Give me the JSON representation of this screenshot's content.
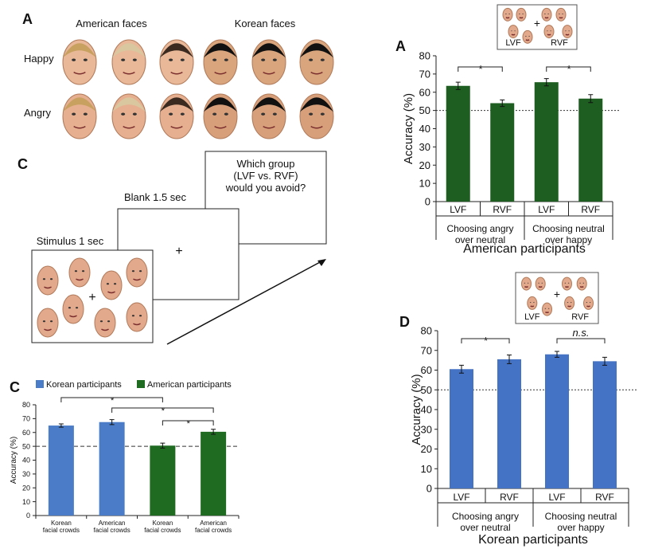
{
  "faces_panel": {
    "label": "A",
    "columns": [
      "American faces",
      "Korean faces"
    ],
    "rows": [
      "Happy",
      "Angry"
    ]
  },
  "procedure_panel": {
    "label": "C",
    "steps": [
      "Stimulus 1 sec",
      "Blank 1.5 sec",
      "Which group\n(LVF vs. RVF)\nwould you avoid?"
    ],
    "fixation": "+"
  },
  "chart_data": [
    {
      "type": "bar",
      "panel_label": "A",
      "inset_labels": [
        "LVF",
        "RVF"
      ],
      "categories": [
        "LVF",
        "RVF",
        "LVF",
        "RVF"
      ],
      "groups": [
        "Choosing angry\nover neutral",
        "Choosing neutral\nover happy"
      ],
      "y_label": "Accuracy (%)",
      "x_label": "American participants",
      "series": [
        {
          "color": "#1e5e20",
          "values": [
            63.5,
            54,
            65.5,
            56.5
          ],
          "errors": [
            2,
            1.8,
            2,
            2.2
          ]
        }
      ],
      "ylim": [
        0,
        80
      ],
      "yticks": [
        0,
        10,
        20,
        30,
        40,
        50,
        60,
        70,
        80
      ],
      "reference_line": 50,
      "annotations": [
        {
          "label": "*",
          "between": [
            0,
            1
          ]
        },
        {
          "label": "*",
          "between": [
            2,
            3
          ]
        }
      ]
    },
    {
      "type": "bar",
      "panel_label": "D",
      "inset_labels": [
        "LVF",
        "RVF"
      ],
      "categories": [
        "LVF",
        "RVF",
        "LVF",
        "RVF"
      ],
      "groups": [
        "Choosing angry\nover neutral",
        "Choosing neutral\nover happy"
      ],
      "y_label": "Accuracy (%)",
      "x_label": "Korean participants",
      "series": [
        {
          "color": "#4472c4",
          "values": [
            60.5,
            65.5,
            68,
            64.5
          ],
          "errors": [
            2,
            2.2,
            1.5,
            2
          ]
        }
      ],
      "ylim": [
        0,
        80
      ],
      "yticks": [
        0,
        10,
        20,
        30,
        40,
        50,
        60,
        70,
        80
      ],
      "reference_line": 50,
      "annotations": [
        {
          "label": "*",
          "between": [
            0,
            1
          ]
        },
        {
          "label": "n.s.",
          "between": [
            2,
            3
          ]
        }
      ]
    },
    {
      "type": "bar",
      "panel_label": "C",
      "categories": [
        "Korean\nfacial crowds",
        "American\nfacial crowds",
        "Korean\nfacial crowds",
        "American\nfacial crowds"
      ],
      "y_label": "Accuracy (%)",
      "series": [
        {
          "name": "Korean participants",
          "color": "#4a7cc7",
          "values": [
            65,
            67.5,
            null,
            null
          ],
          "errors": [
            1.2,
            1.8,
            null,
            null
          ]
        },
        {
          "name": "American participants",
          "color": "#1e6b21",
          "values": [
            null,
            null,
            50.5,
            60.5
          ],
          "errors": [
            null,
            null,
            1.8,
            1.8
          ]
        }
      ],
      "ylim": [
        0,
        80
      ],
      "yticks": [
        0,
        10,
        20,
        30,
        40,
        50,
        60,
        70,
        80
      ],
      "reference_line": 50,
      "legend": "top",
      "annotations": [
        {
          "label": "*",
          "between": [
            0,
            2
          ]
        },
        {
          "label": "*",
          "between": [
            1,
            3
          ]
        },
        {
          "label": "*",
          "between": [
            2,
            3
          ]
        }
      ]
    }
  ]
}
